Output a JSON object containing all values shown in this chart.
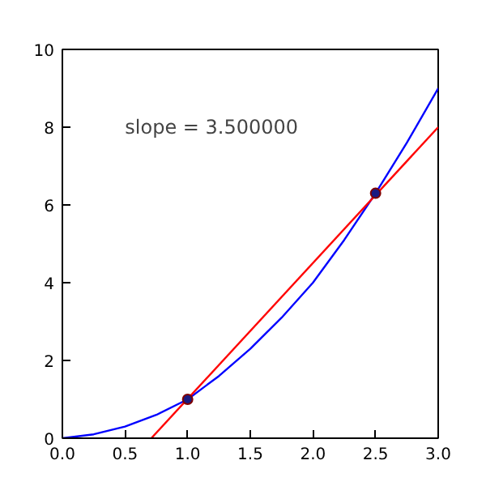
{
  "chart_data": {
    "type": "line",
    "series": [
      {
        "color": "#0000ff",
        "x": [
          0,
          0.25,
          0.5,
          0.75,
          1,
          1.25,
          1.5,
          1.75,
          2,
          2.25,
          2.5,
          2.75,
          3
        ],
        "values": [
          0,
          0.1,
          0.3,
          0.6,
          1,
          1.6,
          2.3,
          3.1,
          4,
          5.1,
          6.3,
          7.6,
          9
        ]
      },
      {
        "color": "#ff0000",
        "x": [
          0.71,
          3
        ],
        "values": [
          0,
          8
        ]
      },
      {
        "type": "scatter",
        "marker": "circle",
        "color": "#1a1a80",
        "x": [
          1,
          2.5
        ],
        "values": [
          1,
          6.3
        ]
      }
    ],
    "annotations": [
      "slope = 3.500000"
    ],
    "xlim": [
      0,
      3
    ],
    "ylim": [
      0,
      10
    ],
    "xticks": [
      {
        "value": 0,
        "label": "0.0"
      },
      {
        "value": 0.5,
        "label": "0.5"
      },
      {
        "value": 1,
        "label": "1.0"
      },
      {
        "value": 1.5,
        "label": "1.5"
      },
      {
        "value": 2,
        "label": "2.0"
      },
      {
        "value": 2.5,
        "label": "2.5"
      },
      {
        "value": 3,
        "label": "3.0"
      }
    ],
    "yticks": [
      0,
      2,
      4,
      6,
      8,
      10
    ],
    "grid": false
  }
}
